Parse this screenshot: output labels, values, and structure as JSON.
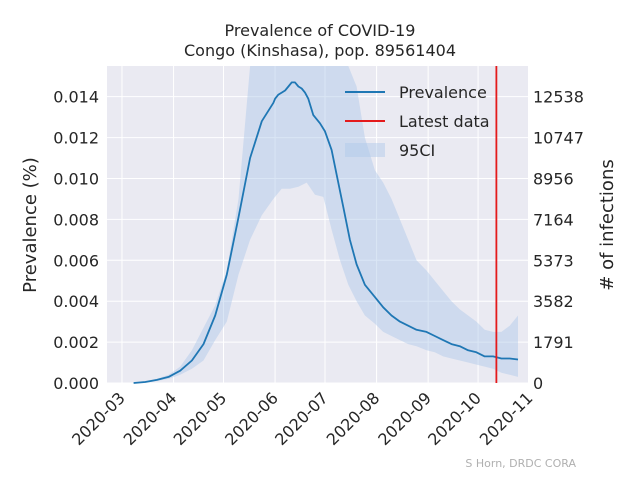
{
  "chart_data": {
    "type": "line",
    "title": "Prevalence of COVID-19",
    "subtitle": "Congo (Kinshasa), pop. 89561404",
    "ylabel": "Prevalence (%)",
    "ylabel_right": "# of infections",
    "ylim": [
      0,
      0.0155
    ],
    "yticks": [
      "0.000",
      "0.002",
      "0.004",
      "0.006",
      "0.008",
      "0.010",
      "0.012",
      "0.014"
    ],
    "yticks_right": [
      "0",
      "1791",
      "3582",
      "5373",
      "7164",
      "8956",
      "10747",
      "12538"
    ],
    "xticks": [
      "2020-03",
      "2020-04",
      "2020-05",
      "2020-06",
      "2020-07",
      "2020-08",
      "2020-09",
      "2020-10",
      "2020-11"
    ],
    "grid": true,
    "legend_position": "top-right",
    "legend": [
      "Prevalence",
      "Latest data",
      "95CI"
    ],
    "latest_data_date": "2020-10-12",
    "series": [
      {
        "name": "Prevalence",
        "color": "#1f77b4",
        "x": [
          "2020-03-08",
          "2020-03-15",
          "2020-03-22",
          "2020-03-29",
          "2020-04-05",
          "2020-04-12",
          "2020-04-19",
          "2020-04-26",
          "2020-05-03",
          "2020-05-10",
          "2020-05-17",
          "2020-05-24",
          "2020-05-31",
          "2020-06-01",
          "2020-06-03",
          "2020-06-05",
          "2020-06-07",
          "2020-06-09",
          "2020-06-11",
          "2020-06-13",
          "2020-06-15",
          "2020-06-17",
          "2020-06-19",
          "2020-06-21",
          "2020-06-24",
          "2020-06-28",
          "2020-07-01",
          "2020-07-05",
          "2020-07-08",
          "2020-07-12",
          "2020-07-16",
          "2020-07-20",
          "2020-07-25",
          "2020-07-31",
          "2020-08-05",
          "2020-08-10",
          "2020-08-15",
          "2020-08-20",
          "2020-08-25",
          "2020-08-31",
          "2020-09-05",
          "2020-09-10",
          "2020-09-15",
          "2020-09-20",
          "2020-09-25",
          "2020-09-30",
          "2020-10-05",
          "2020-10-10",
          "2020-10-15",
          "2020-10-20",
          "2020-10-25"
        ],
        "values": [
          0.0,
          5e-05,
          0.00015,
          0.0003,
          0.0006,
          0.0011,
          0.0019,
          0.0033,
          0.0053,
          0.0081,
          0.011,
          0.0128,
          0.0137,
          0.0139,
          0.0141,
          0.0142,
          0.0143,
          0.0145,
          0.0147,
          0.0147,
          0.0145,
          0.0144,
          0.0142,
          0.0139,
          0.0131,
          0.0127,
          0.0123,
          0.0114,
          0.0102,
          0.0086,
          0.007,
          0.0058,
          0.0048,
          0.0042,
          0.0037,
          0.0033,
          0.003,
          0.0028,
          0.0026,
          0.0025,
          0.0023,
          0.0021,
          0.0019,
          0.0018,
          0.0016,
          0.0015,
          0.0013,
          0.0013,
          0.0012,
          0.0012,
          0.00115
        ]
      },
      {
        "name": "95CI",
        "color": "#aec7e8",
        "x": [
          "2020-03-08",
          "2020-03-15",
          "2020-03-22",
          "2020-03-29",
          "2020-04-05",
          "2020-04-12",
          "2020-04-19",
          "2020-04-26",
          "2020-05-03",
          "2020-05-10",
          "2020-05-17",
          "2020-05-24",
          "2020-05-31",
          "2020-06-05",
          "2020-06-10",
          "2020-06-15",
          "2020-06-20",
          "2020-06-25",
          "2020-06-30",
          "2020-07-05",
          "2020-07-10",
          "2020-07-15",
          "2020-07-20",
          "2020-07-25",
          "2020-07-31",
          "2020-08-05",
          "2020-08-10",
          "2020-08-15",
          "2020-08-20",
          "2020-08-25",
          "2020-08-31",
          "2020-09-05",
          "2020-09-10",
          "2020-09-15",
          "2020-09-20",
          "2020-09-25",
          "2020-09-30",
          "2020-10-05",
          "2020-10-10",
          "2020-10-15",
          "2020-10-20",
          "2020-10-25"
        ],
        "lower": [
          0.0,
          3e-05,
          0.0001,
          0.0002,
          0.0004,
          0.0007,
          0.0011,
          0.0021,
          0.003,
          0.0053,
          0.007,
          0.0082,
          0.009,
          0.0095,
          0.0095,
          0.0096,
          0.0098,
          0.0092,
          0.0091,
          0.0075,
          0.006,
          0.0048,
          0.004,
          0.0033,
          0.0029,
          0.0025,
          0.0023,
          0.0021,
          0.0019,
          0.0018,
          0.0016,
          0.0015,
          0.0013,
          0.0012,
          0.0011,
          0.001,
          0.0009,
          0.0008,
          0.0007,
          0.0005,
          0.0004,
          0.0003
        ],
        "upper": [
          2e-05,
          0.0001,
          0.0002,
          0.0004,
          0.0008,
          0.0016,
          0.0027,
          0.0038,
          0.0055,
          0.009,
          0.0155,
          0.0155,
          0.0155,
          0.0155,
          0.0155,
          0.0155,
          0.0155,
          0.0155,
          0.0155,
          0.0155,
          0.0155,
          0.0155,
          0.0145,
          0.012,
          0.0104,
          0.0098,
          0.009,
          0.008,
          0.007,
          0.006,
          0.0055,
          0.005,
          0.0045,
          0.004,
          0.0036,
          0.0033,
          0.003,
          0.0026,
          0.0025,
          0.0025,
          0.0028,
          0.0033
        ]
      }
    ]
  },
  "credit": "S Horn, DRDC CORA"
}
